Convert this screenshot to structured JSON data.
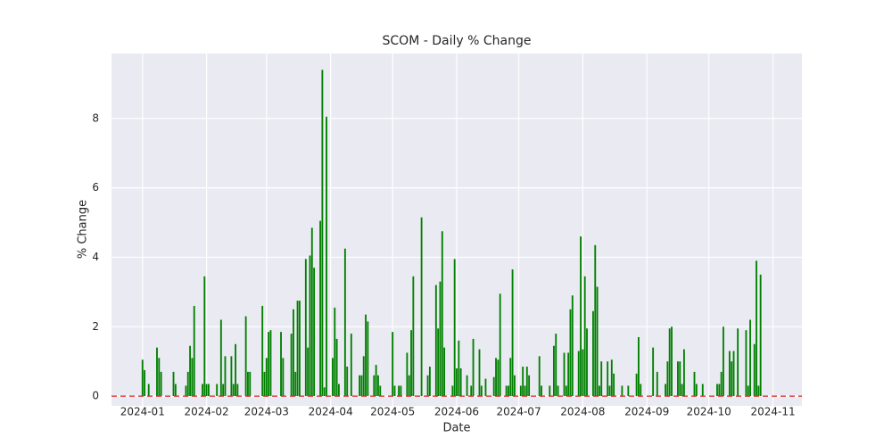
{
  "chart_data": {
    "type": "bar",
    "title": "SCOM - Daily % Change",
    "x_label": "Date",
    "y_label": "% Change",
    "x": [
      1,
      2,
      4,
      8,
      9,
      10,
      16,
      17,
      22,
      23,
      24,
      25,
      26,
      30,
      31,
      32,
      33,
      37,
      39,
      40,
      41,
      44,
      45,
      46,
      47,
      51,
      52,
      53,
      59,
      60,
      61,
      62,
      63,
      68,
      69,
      73,
      74,
      75,
      76,
      77,
      80,
      81,
      82,
      83,
      84,
      87,
      88,
      89,
      90,
      93,
      94,
      95,
      96,
      99,
      100,
      102,
      106,
      107,
      108,
      109,
      110,
      113,
      114,
      115,
      116,
      122,
      123,
      125,
      126,
      129,
      130,
      131,
      132,
      136,
      139,
      140,
      143,
      144,
      145,
      146,
      147,
      151,
      152,
      153,
      154,
      155,
      158,
      160,
      161,
      164,
      165,
      167,
      171,
      172,
      173,
      174,
      177,
      178,
      179,
      180,
      181,
      184,
      185,
      186,
      187,
      188,
      193,
      194,
      198,
      200,
      201,
      202,
      205,
      206,
      207,
      208,
      209,
      212,
      213,
      214,
      215,
      216,
      219,
      220,
      221,
      222,
      223,
      226,
      227,
      228,
      229,
      233,
      236,
      240,
      241,
      242,
      248,
      250,
      254,
      255,
      256,
      257,
      260,
      261,
      262,
      263,
      268,
      269,
      272,
      279,
      280,
      281,
      282,
      285,
      286,
      287,
      289,
      293,
      294,
      295,
      297,
      298,
      299,
      300
    ],
    "values": [
      1.05,
      0.75,
      0.35,
      1.4,
      1.1,
      0.7,
      0.7,
      0.35,
      0.3,
      0.7,
      1.45,
      1.1,
      2.6,
      0.35,
      3.45,
      0.35,
      0.35,
      0.35,
      2.2,
      0.35,
      1.15,
      1.15,
      0.35,
      1.5,
      0.35,
      2.3,
      0.7,
      0.7,
      2.6,
      0.7,
      1.1,
      1.85,
      1.9,
      1.85,
      1.1,
      1.8,
      2.5,
      0.7,
      2.75,
      2.75,
      3.95,
      1.4,
      4.05,
      4.85,
      3.7,
      5.05,
      9.4,
      0.25,
      8.05,
      1.1,
      2.55,
      1.65,
      0.35,
      4.25,
      0.85,
      1.8,
      0.6,
      0.6,
      1.15,
      2.35,
      2.15,
      0.6,
      0.9,
      0.6,
      0.3,
      1.85,
      0.3,
      0.3,
      0.3,
      1.25,
      0.6,
      1.9,
      3.45,
      5.15,
      0.6,
      0.85,
      3.2,
      1.95,
      3.3,
      4.75,
      1.4,
      0.3,
      3.95,
      0.8,
      1.6,
      0.8,
      0.6,
      0.3,
      1.65,
      1.35,
      0.3,
      0.5,
      0.55,
      1.1,
      1.05,
      2.95,
      0.3,
      0.3,
      1.1,
      3.65,
      0.6,
      0.3,
      0.85,
      0.3,
      0.85,
      0.6,
      1.15,
      0.3,
      0.3,
      1.45,
      1.8,
      0.3,
      1.25,
      0.3,
      1.25,
      2.5,
      2.9,
      1.3,
      4.6,
      1.35,
      3.45,
      1.95,
      2.45,
      4.35,
      3.15,
      0.3,
      1.0,
      1.0,
      0.3,
      1.05,
      0.65,
      0.3,
      0.3,
      0.65,
      1.7,
      0.35,
      1.4,
      0.7,
      0.35,
      1.0,
      1.95,
      2.0,
      1.0,
      1.0,
      0.35,
      1.35,
      0.7,
      0.35,
      0.35,
      0.35,
      0.35,
      0.7,
      2.0,
      1.3,
      1.0,
      1.3,
      1.95,
      1.9,
      0.3,
      2.2,
      1.5,
      3.9,
      0.3,
      3.5
    ],
    "color": "#008000",
    "xlim": [
      -14,
      320
    ],
    "xticks": [
      {
        "value": 1,
        "label": "2024-01"
      },
      {
        "value": 32,
        "label": "2024-02"
      },
      {
        "value": 61,
        "label": "2024-03"
      },
      {
        "value": 92,
        "label": "2024-04"
      },
      {
        "value": 122,
        "label": "2024-05"
      },
      {
        "value": 153,
        "label": "2024-06"
      },
      {
        "value": 183,
        "label": "2024-07"
      },
      {
        "value": 214,
        "label": "2024-08"
      },
      {
        "value": 245,
        "label": "2024-09"
      },
      {
        "value": 275,
        "label": "2024-10"
      },
      {
        "value": 306,
        "label": "2024-11"
      }
    ],
    "ylim": [
      -0.28,
      9.87
    ],
    "yticks": [
      0,
      2,
      4,
      6,
      8
    ],
    "grid": true,
    "reference_line": {
      "value": 0,
      "color": "#d62728"
    }
  }
}
